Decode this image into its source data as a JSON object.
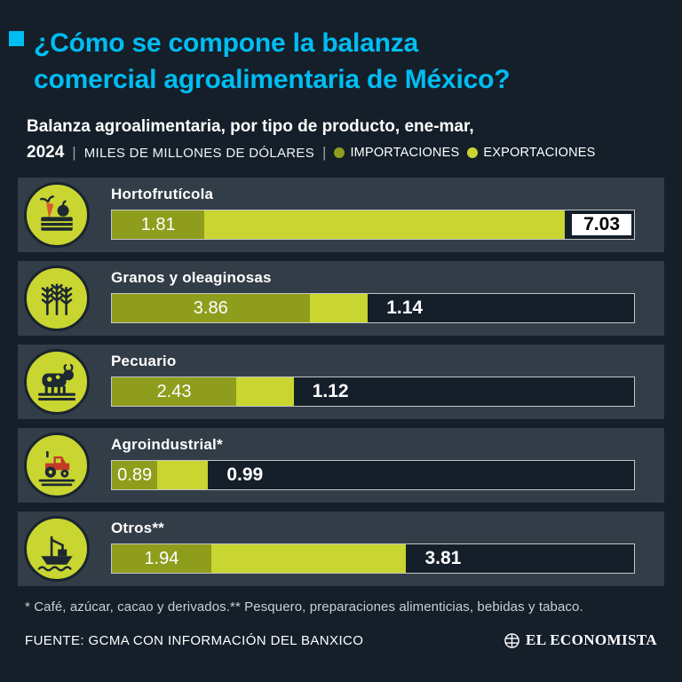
{
  "colors": {
    "background": "#141f2a",
    "panel": "#333d47",
    "accent_cyan": "#00bdf2",
    "import": "#8f9d1d",
    "export": "#c9d530",
    "icon_circle": "#c9d530",
    "export_box_bg": "#ffffff"
  },
  "header": {
    "title_line1": "¿Cómo se compone la balanza",
    "title_line2": "comercial agroalimentaria de México?"
  },
  "subtitle": {
    "line1": "Balanza agroalimentaria, por tipo de producto, ene-mar,",
    "year": "2024",
    "separator": "|",
    "units": "MILES DE MILLONES DE DÓLARES",
    "legend_import": "IMPORTACIONES",
    "legend_export": "EXPORTACIONES"
  },
  "rows": [
    {
      "label": "Hortofrutícola",
      "icon": "vegetables-crate",
      "import_label": "1.81",
      "export_label": "7.03"
    },
    {
      "label": "Granos y oleaginosas",
      "icon": "wheat",
      "import_label": "3.86",
      "export_label": "1.14"
    },
    {
      "label": "Pecuario",
      "icon": "cattle",
      "import_label": "2.43",
      "export_label": "1.12"
    },
    {
      "label": "Agroindustrial*",
      "icon": "tractor-field",
      "import_label": "0.89",
      "export_label": "0.99"
    },
    {
      "label": "Otros**",
      "icon": "fishing-boat",
      "import_label": "1.94",
      "export_label": "3.81"
    }
  ],
  "chart_data": {
    "type": "bar",
    "orientation": "horizontal",
    "title": "Balanza agroalimentaria, por tipo de producto, ene-mar, 2024",
    "units": "Miles de millones de dólares",
    "categories": [
      "Hortofrutícola",
      "Granos y oleaginosas",
      "Pecuario",
      "Agroindustrial*",
      "Otros**"
    ],
    "series": [
      {
        "name": "IMPORTACIONES",
        "color": "#8f9d1d",
        "values": [
          1.81,
          3.86,
          2.43,
          0.89,
          1.94
        ]
      },
      {
        "name": "EXPORTACIONES",
        "color": "#c9d530",
        "values": [
          7.03,
          1.14,
          1.12,
          0.99,
          3.81
        ]
      }
    ],
    "xlim": [
      0,
      10.2
    ],
    "grid": false,
    "legend_position": "top"
  },
  "footer": {
    "footnote": "* Café, azúcar, cacao y derivados.** Pesquero, preparaciones alimenticias, bebidas y tabaco.",
    "source": "FUENTE: GCMA CON INFORMACIÓN DEL BANXICO",
    "brand": "EL ECONOMISTA"
  }
}
